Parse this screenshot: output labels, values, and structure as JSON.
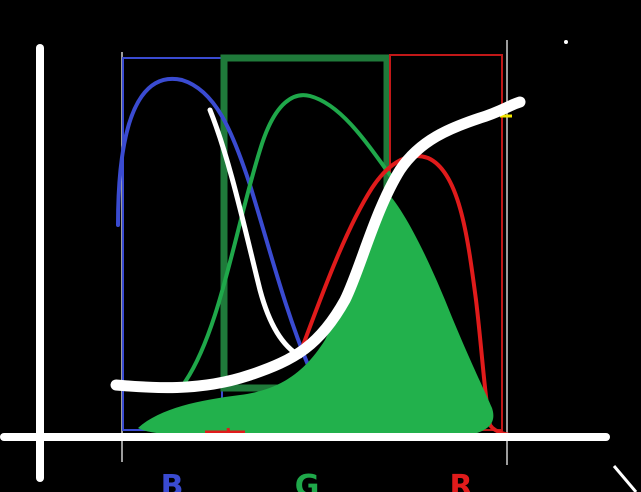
{
  "diagram": {
    "background": "#000000",
    "axis_color": "#ffffff",
    "bands": [
      {
        "key": "blue",
        "label": "B",
        "color": "#3a4bd1"
      },
      {
        "key": "green",
        "label": "G",
        "color": "#1fa84a"
      },
      {
        "key": "red",
        "label": "R",
        "color": "#e01b1b"
      }
    ],
    "fill_color": "#22b14c",
    "highlight_color": "#f2e600",
    "white_curve_color": "#ffffff"
  }
}
